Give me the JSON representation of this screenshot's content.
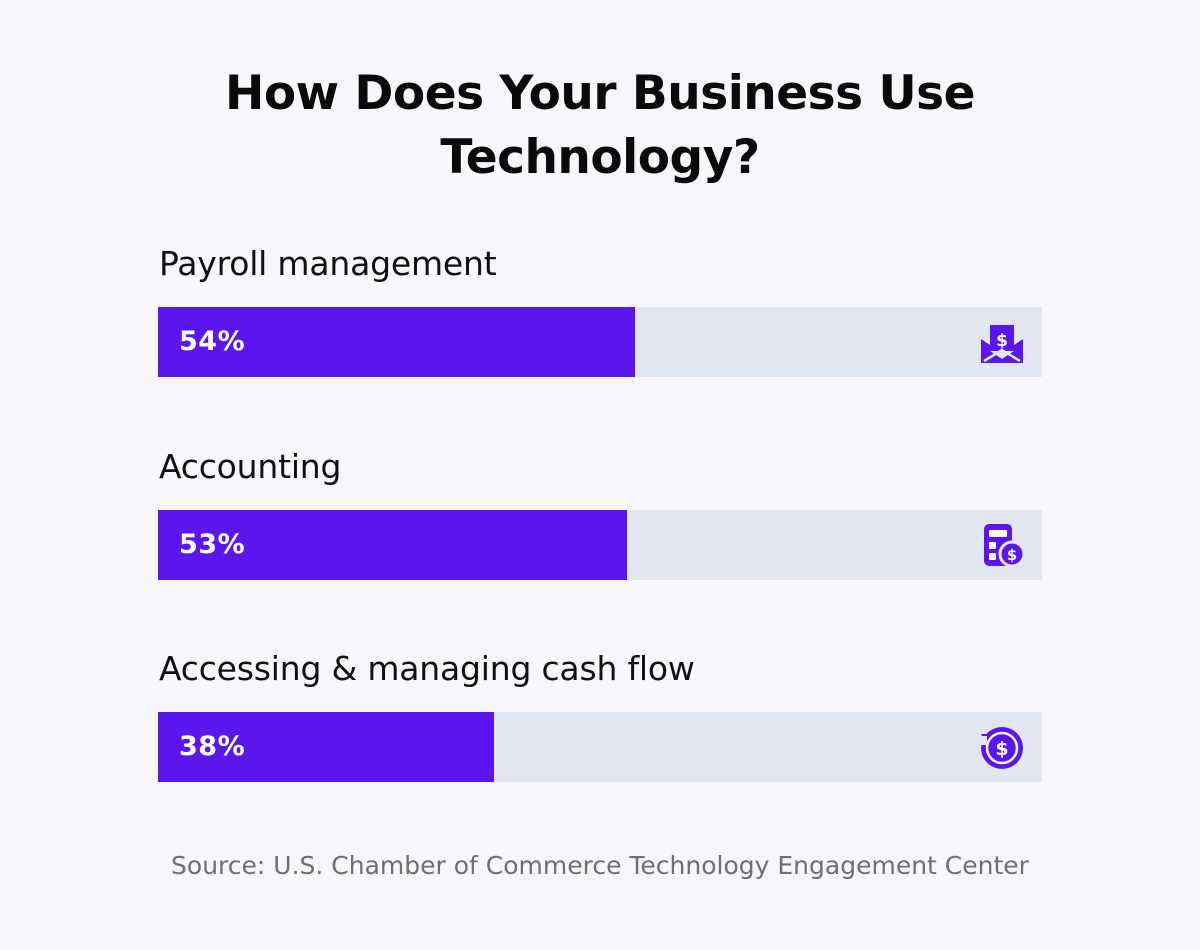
{
  "title": "How Does Your Business Use Technology?",
  "source": "Source: U.S. Chamber of Commerce Technology Engagement Center",
  "colors": {
    "background": "#f6f6fb",
    "bar_fill": "#5b16ee",
    "bar_track": "#e2e6ee",
    "icon": "#5b16ee",
    "value_text": "#ffffff",
    "source_text": "#6e6e78"
  },
  "chart_data": {
    "type": "bar",
    "orientation": "horizontal",
    "categories": [
      "Payroll management",
      "Accounting",
      "Accessing & managing cash flow"
    ],
    "values": [
      54,
      53,
      38
    ],
    "value_labels": [
      "54%",
      "53%",
      "38%"
    ],
    "icons": [
      "payroll-envelope-icon",
      "calculator-dollar-icon",
      "cash-flow-cycle-icon"
    ],
    "title": "How Does Your Business Use Technology?",
    "xlabel": "",
    "ylabel": "",
    "xlim": [
      0,
      100
    ],
    "grid": false,
    "legend": "none"
  }
}
